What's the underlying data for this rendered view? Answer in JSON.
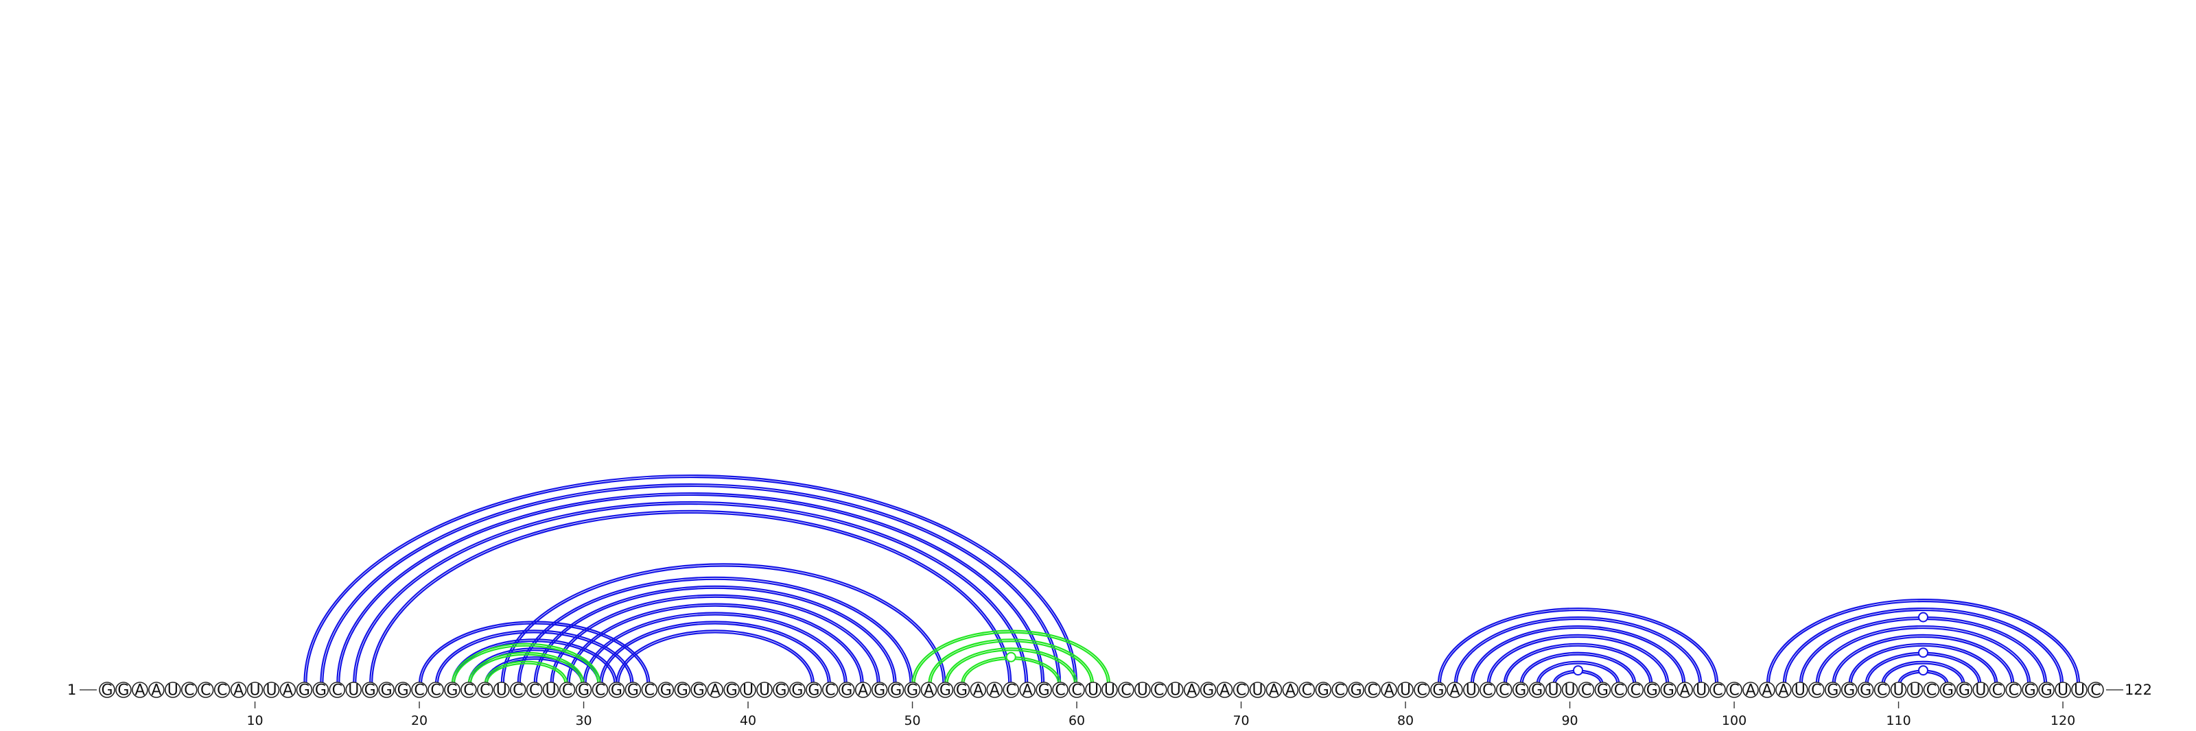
{
  "sequence": "GGAAUCCCAUUAGGCUGGGCCGCCUCCUCGCGGCGGGAGUUGGGCGAGGGAGGAACAGCCUUCUCUAGACUAACGCGCAUCGAUCCGGUUCGCCGGAUCCAAAUCGGGCUUCGGUCCGGUUC",
  "length": 122,
  "start_label": "1",
  "end_label": "122",
  "ticks": [
    10,
    20,
    30,
    40,
    50,
    60,
    70,
    80,
    90,
    100,
    110,
    120
  ],
  "colors": {
    "blue_pairs": "#1414e6",
    "green_pairs": "#22e622",
    "backbone": "#444444"
  },
  "chart_data": {
    "type": "arc_diagram",
    "blue_pairs": [
      [
        13,
        60
      ],
      [
        14,
        59
      ],
      [
        15,
        58
      ],
      [
        16,
        57
      ],
      [
        17,
        56
      ],
      [
        20,
        34
      ],
      [
        21,
        33
      ],
      [
        22,
        32
      ],
      [
        23,
        31
      ],
      [
        24,
        30
      ],
      [
        25,
        52
      ],
      [
        26,
        50
      ],
      [
        27,
        49
      ],
      [
        28,
        48
      ],
      [
        29,
        47
      ],
      [
        30,
        46
      ],
      [
        31,
        45
      ],
      [
        32,
        44
      ],
      [
        82,
        99
      ],
      [
        83,
        98
      ],
      [
        84,
        97
      ],
      [
        85,
        96
      ],
      [
        86,
        95
      ],
      [
        87,
        94
      ],
      [
        88,
        93
      ],
      [
        89,
        92
      ],
      [
        102,
        121
      ],
      [
        103,
        120
      ],
      [
        104,
        119
      ],
      [
        105,
        118
      ],
      [
        106,
        117
      ],
      [
        107,
        116
      ],
      [
        108,
        115
      ],
      [
        109,
        114
      ],
      [
        110,
        113
      ]
    ],
    "green_pairs": [
      [
        22,
        31
      ],
      [
        23,
        30
      ],
      [
        24,
        29
      ],
      [
        50,
        62
      ],
      [
        51,
        61
      ],
      [
        52,
        60
      ],
      [
        53,
        59
      ]
    ],
    "marked_positions": {
      "blue": [
        90.5,
        111.5
      ],
      "green": [
        56
      ]
    }
  }
}
